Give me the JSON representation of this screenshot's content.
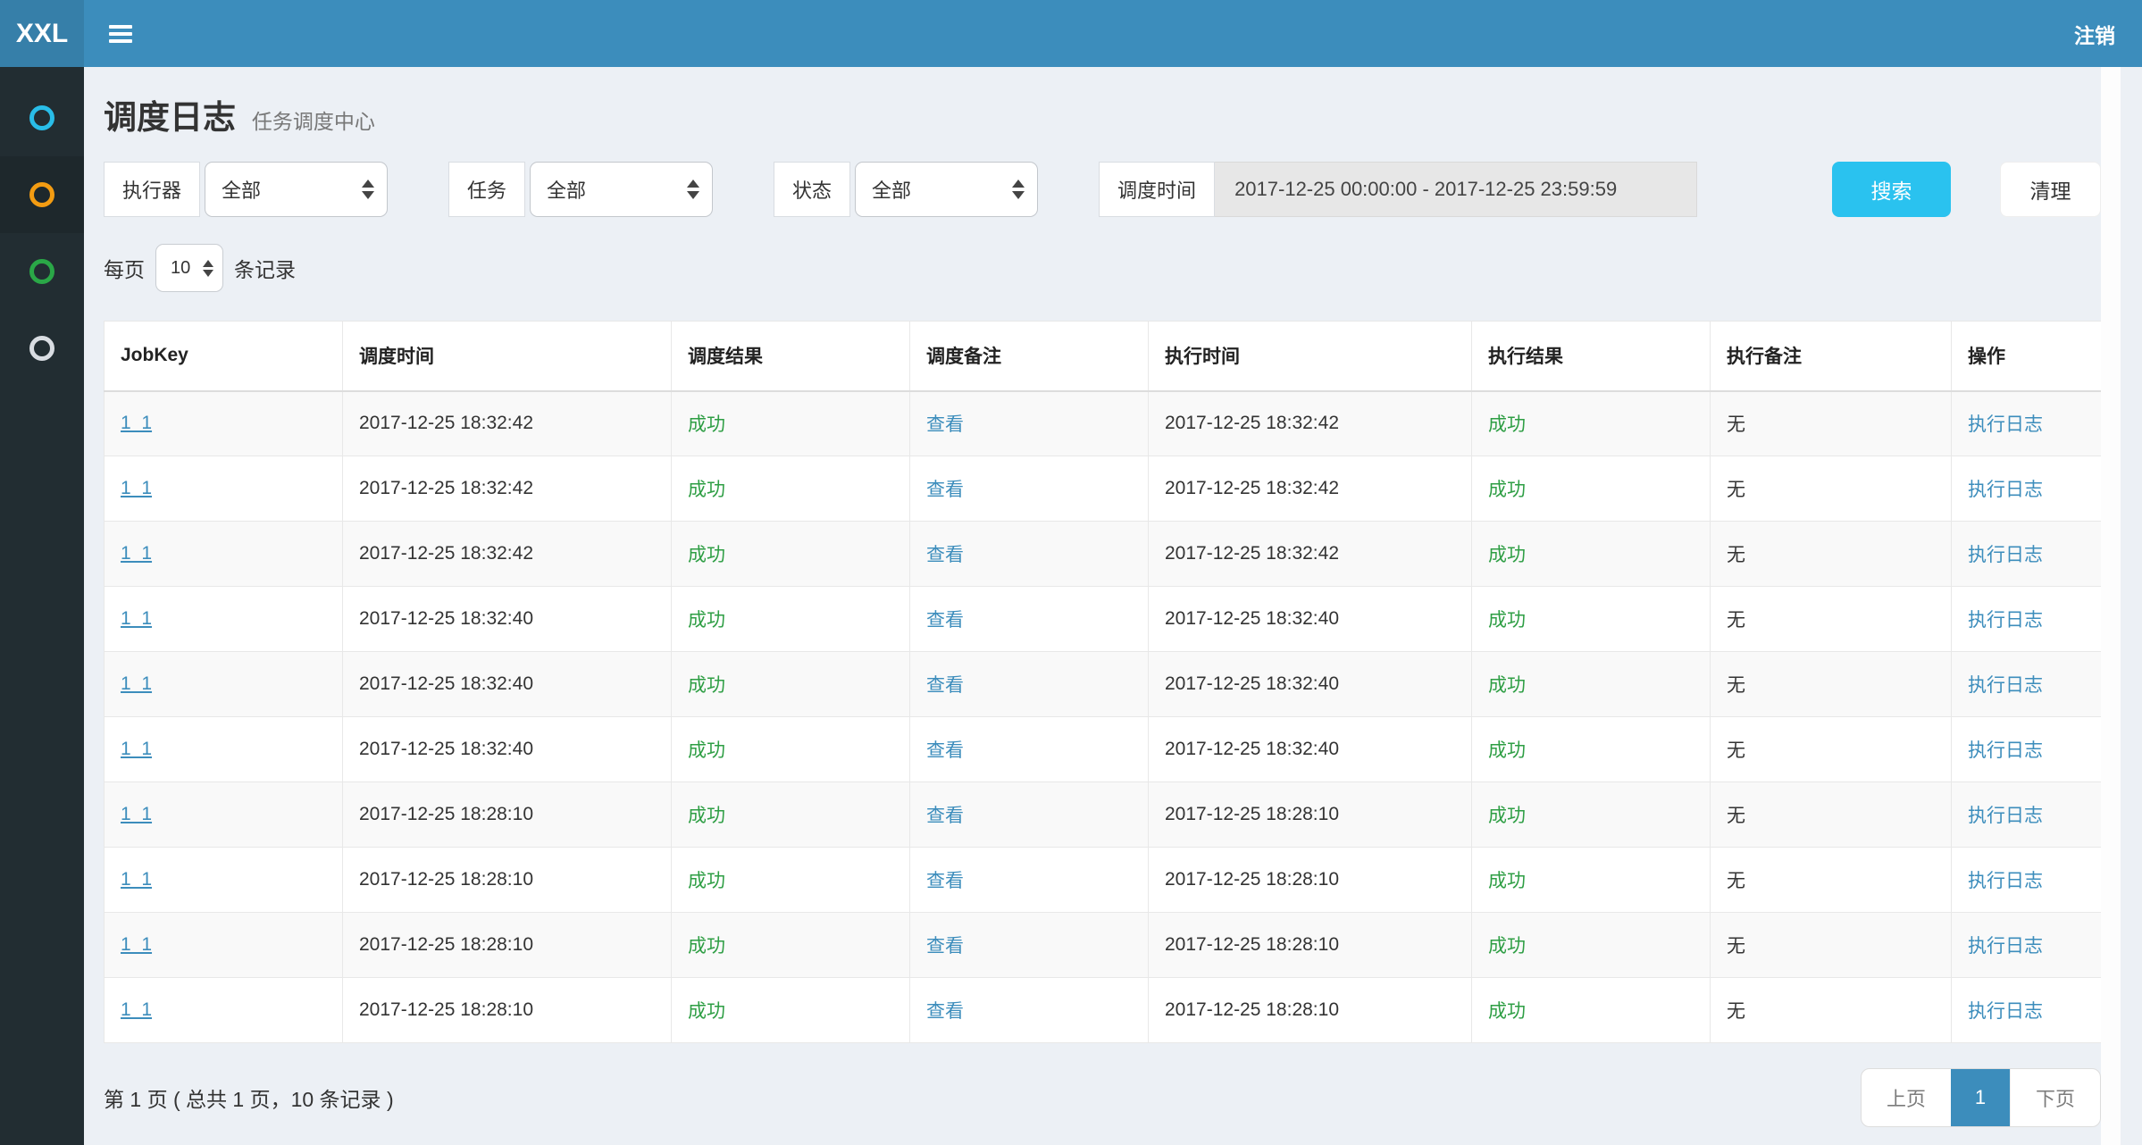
{
  "navbar": {
    "logo": "XXL",
    "logout_label": "注销"
  },
  "sidebar": {
    "items": [
      {
        "icon": "circle-outline-icon",
        "color": "#29bde8",
        "active": false
      },
      {
        "icon": "circle-outline-icon",
        "color": "#f39c12",
        "active": true
      },
      {
        "icon": "circle-outline-icon",
        "color": "#2aa747",
        "active": false
      },
      {
        "icon": "circle-outline-icon",
        "color": "#d9dde2",
        "active": false
      }
    ]
  },
  "page_header": {
    "title": "调度日志",
    "subtitle": "任务调度中心"
  },
  "filters": {
    "executor": {
      "label": "执行器",
      "value": "全部"
    },
    "job": {
      "label": "任务",
      "value": "全部"
    },
    "status": {
      "label": "状态",
      "value": "全部"
    },
    "time": {
      "label": "调度时间",
      "value": "2017-12-25 00:00:00 - 2017-12-25 23:59:59"
    },
    "search_label": "搜索",
    "clean_label": "清理"
  },
  "pagesize": {
    "prefix": "每页",
    "value": "10",
    "suffix": "条记录"
  },
  "table": {
    "columns": [
      "JobKey",
      "调度时间",
      "调度结果",
      "调度备注",
      "执行时间",
      "执行结果",
      "执行备注",
      "操作"
    ],
    "rows": [
      {
        "job_key": "1_1",
        "trigger_time": "2017-12-25 18:32:42",
        "trigger_result": "成功",
        "trigger_msg": "查看",
        "handle_time": "2017-12-25 18:32:42",
        "handle_result": "成功",
        "handle_msg": "无",
        "action": "执行日志"
      },
      {
        "job_key": "1_1",
        "trigger_time": "2017-12-25 18:32:42",
        "trigger_result": "成功",
        "trigger_msg": "查看",
        "handle_time": "2017-12-25 18:32:42",
        "handle_result": "成功",
        "handle_msg": "无",
        "action": "执行日志"
      },
      {
        "job_key": "1_1",
        "trigger_time": "2017-12-25 18:32:42",
        "trigger_result": "成功",
        "trigger_msg": "查看",
        "handle_time": "2017-12-25 18:32:42",
        "handle_result": "成功",
        "handle_msg": "无",
        "action": "执行日志"
      },
      {
        "job_key": "1_1",
        "trigger_time": "2017-12-25 18:32:40",
        "trigger_result": "成功",
        "trigger_msg": "查看",
        "handle_time": "2017-12-25 18:32:40",
        "handle_result": "成功",
        "handle_msg": "无",
        "action": "执行日志"
      },
      {
        "job_key": "1_1",
        "trigger_time": "2017-12-25 18:32:40",
        "trigger_result": "成功",
        "trigger_msg": "查看",
        "handle_time": "2017-12-25 18:32:40",
        "handle_result": "成功",
        "handle_msg": "无",
        "action": "执行日志"
      },
      {
        "job_key": "1_1",
        "trigger_time": "2017-12-25 18:32:40",
        "trigger_result": "成功",
        "trigger_msg": "查看",
        "handle_time": "2017-12-25 18:32:40",
        "handle_result": "成功",
        "handle_msg": "无",
        "action": "执行日志"
      },
      {
        "job_key": "1_1",
        "trigger_time": "2017-12-25 18:28:10",
        "trigger_result": "成功",
        "trigger_msg": "查看",
        "handle_time": "2017-12-25 18:28:10",
        "handle_result": "成功",
        "handle_msg": "无",
        "action": "执行日志"
      },
      {
        "job_key": "1_1",
        "trigger_time": "2017-12-25 18:28:10",
        "trigger_result": "成功",
        "trigger_msg": "查看",
        "handle_time": "2017-12-25 18:28:10",
        "handle_result": "成功",
        "handle_msg": "无",
        "action": "执行日志"
      },
      {
        "job_key": "1_1",
        "trigger_time": "2017-12-25 18:28:10",
        "trigger_result": "成功",
        "trigger_msg": "查看",
        "handle_time": "2017-12-25 18:28:10",
        "handle_result": "成功",
        "handle_msg": "无",
        "action": "执行日志"
      },
      {
        "job_key": "1_1",
        "trigger_time": "2017-12-25 18:28:10",
        "trigger_result": "成功",
        "trigger_msg": "查看",
        "handle_time": "2017-12-25 18:28:10",
        "handle_result": "成功",
        "handle_msg": "无",
        "action": "执行日志"
      }
    ]
  },
  "pagination": {
    "summary": "第 1 页 ( 总共 1 页，10 条记录 )",
    "prev_label": "上页",
    "current_page": "1",
    "next_label": "下页"
  },
  "colors": {
    "navbar": "#3c8dbc",
    "logo_bg": "#367fa9",
    "sidebar": "#222d32",
    "sidebar_active": "#1e282c",
    "content_bg": "#ecf0f5",
    "search_button": "#2ac2ef",
    "link": "#3c8dbc",
    "success_text": "#2e9e44",
    "pager_active": "#3c8dbc"
  }
}
